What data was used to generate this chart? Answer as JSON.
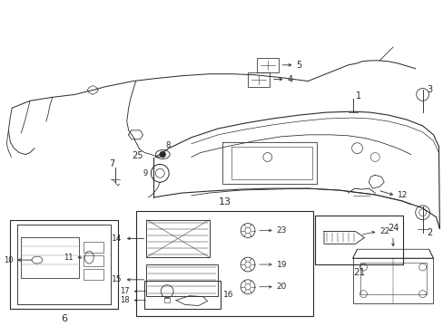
{
  "bg_color": "#ffffff",
  "lc": "#2a2a2a",
  "fig_w": 4.89,
  "fig_h": 3.6,
  "dpi": 100,
  "xmax": 489,
  "ymax": 360
}
